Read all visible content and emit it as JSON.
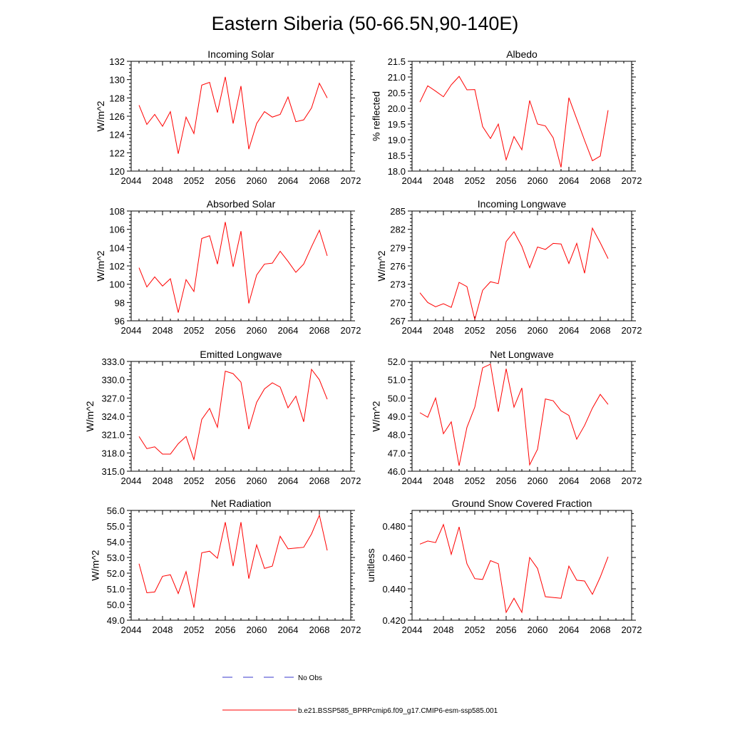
{
  "title": "Eastern Siberia (50-66.5N,90-140E)",
  "legend": {
    "no_obs_label": "No Obs",
    "model_label": "b.e21.BSSP585_BPRPcmip6.f09_g17.CMIP6-esm-ssp585.001",
    "no_obs_color": "#3a3acc",
    "model_color": "#ff0000"
  },
  "chart_data": [
    {
      "type": "line",
      "title": "Incoming Solar",
      "ylabel": "W/m^2",
      "xlim": [
        2044,
        2072
      ],
      "ylim": [
        120,
        132
      ],
      "xticks": [
        "2044",
        "2048",
        "2052",
        "2056",
        "2060",
        "2064",
        "2068",
        "2072"
      ],
      "yticks": [
        "120",
        "122",
        "124",
        "126",
        "128",
        "130",
        "132"
      ],
      "x": [
        2045,
        2046,
        2047,
        2048,
        2049,
        2050,
        2051,
        2052,
        2053,
        2054,
        2055,
        2056,
        2057,
        2058,
        2059,
        2060,
        2061,
        2062,
        2063,
        2064,
        2065,
        2066,
        2067,
        2068,
        2069
      ],
      "series": [
        {
          "values": [
            127.2,
            125.1,
            126.2,
            124.9,
            126.5,
            121.9,
            125.9,
            124.1,
            129.4,
            129.7,
            126.4,
            130.3,
            125.2,
            129.3,
            122.4,
            125.2,
            126.5,
            125.9,
            126.2,
            128.1,
            125.4,
            125.6,
            126.9,
            129.6,
            128.0
          ]
        }
      ]
    },
    {
      "type": "line",
      "title": "Albedo",
      "ylabel": "% reflected",
      "xlim": [
        2044,
        2072
      ],
      "ylim": [
        18.0,
        21.5
      ],
      "xticks": [
        "2044",
        "2048",
        "2052",
        "2056",
        "2060",
        "2064",
        "2068",
        "2072"
      ],
      "yticks": [
        "18.0",
        "18.5",
        "19.0",
        "19.5",
        "20.0",
        "20.5",
        "21.0",
        "21.5"
      ],
      "x": [
        2045,
        2046,
        2047,
        2048,
        2049,
        2050,
        2051,
        2052,
        2053,
        2054,
        2055,
        2056,
        2057,
        2058,
        2059,
        2060,
        2061,
        2062,
        2063,
        2064,
        2065,
        2066,
        2067,
        2068,
        2069
      ],
      "series": [
        {
          "values": [
            20.2,
            20.72,
            20.55,
            20.37,
            20.75,
            21.02,
            20.59,
            20.6,
            19.42,
            19.04,
            19.5,
            18.36,
            19.1,
            18.68,
            20.25,
            19.5,
            19.44,
            19.06,
            18.12,
            20.34,
            19.66,
            18.98,
            18.33,
            18.48,
            19.94
          ]
        }
      ]
    },
    {
      "type": "line",
      "title": "Absorbed Solar",
      "ylabel": "W/m^2",
      "xlim": [
        2044,
        2072
      ],
      "ylim": [
        96,
        108
      ],
      "xticks": [
        "2044",
        "2048",
        "2052",
        "2056",
        "2060",
        "2064",
        "2068",
        "2072"
      ],
      "yticks": [
        "96",
        "98",
        "100",
        "102",
        "104",
        "106",
        "108"
      ],
      "x": [
        2045,
        2046,
        2047,
        2048,
        2049,
        2050,
        2051,
        2052,
        2053,
        2054,
        2055,
        2056,
        2057,
        2058,
        2059,
        2060,
        2061,
        2062,
        2063,
        2064,
        2065,
        2066,
        2067,
        2068,
        2069
      ],
      "series": [
        {
          "values": [
            101.8,
            99.7,
            100.8,
            99.8,
            100.6,
            96.9,
            100.5,
            99.2,
            105.0,
            105.3,
            102.2,
            106.8,
            101.9,
            105.8,
            97.9,
            101.0,
            102.2,
            102.3,
            103.6,
            102.5,
            101.3,
            102.2,
            104.1,
            105.9,
            103.1
          ]
        }
      ]
    },
    {
      "type": "line",
      "title": "Incoming Longwave",
      "ylabel": "W/m^2",
      "xlim": [
        2044,
        2072
      ],
      "ylim": [
        267,
        285
      ],
      "xticks": [
        "2044",
        "2048",
        "2052",
        "2056",
        "2060",
        "2064",
        "2068",
        "2072"
      ],
      "yticks": [
        "267",
        "270",
        "273",
        "276",
        "279",
        "282",
        "285"
      ],
      "x": [
        2045,
        2046,
        2047,
        2048,
        2049,
        2050,
        2051,
        2052,
        2053,
        2054,
        2055,
        2056,
        2057,
        2058,
        2059,
        2060,
        2061,
        2062,
        2063,
        2064,
        2065,
        2066,
        2067,
        2068,
        2069
      ],
      "series": [
        {
          "values": [
            271.6,
            270.0,
            269.3,
            269.8,
            269.2,
            273.3,
            272.6,
            267.2,
            272.0,
            273.4,
            273.1,
            280.0,
            281.6,
            279.2,
            275.7,
            279.1,
            278.7,
            279.7,
            279.6,
            276.4,
            279.7,
            274.8,
            282.2,
            279.8,
            277.2
          ]
        }
      ]
    },
    {
      "type": "line",
      "title": "Emitted Longwave",
      "ylabel": "W/m^2",
      "xlim": [
        2044,
        2072
      ],
      "ylim": [
        315,
        333
      ],
      "xticks": [
        "2044",
        "2048",
        "2052",
        "2056",
        "2060",
        "2064",
        "2068",
        "2072"
      ],
      "yticks": [
        "315.0",
        "318.0",
        "321.0",
        "324.0",
        "327.0",
        "330.0",
        "333.0"
      ],
      "x": [
        2045,
        2046,
        2047,
        2048,
        2049,
        2050,
        2051,
        2052,
        2053,
        2054,
        2055,
        2056,
        2057,
        2058,
        2059,
        2060,
        2061,
        2062,
        2063,
        2064,
        2065,
        2066,
        2067,
        2068,
        2069
      ],
      "series": [
        {
          "values": [
            320.7,
            318.7,
            319.0,
            317.8,
            317.8,
            319.5,
            320.7,
            316.9,
            323.5,
            325.3,
            322.2,
            331.4,
            331.0,
            329.6,
            321.9,
            326.3,
            328.5,
            329.5,
            328.8,
            325.4,
            327.3,
            323.1,
            331.7,
            330.0,
            326.8
          ]
        }
      ]
    },
    {
      "type": "line",
      "title": "Net Longwave",
      "ylabel": "W/m^2",
      "xlim": [
        2044,
        2072
      ],
      "ylim": [
        46,
        52
      ],
      "xticks": [
        "2044",
        "2048",
        "2052",
        "2056",
        "2060",
        "2064",
        "2068",
        "2072"
      ],
      "yticks": [
        "46.0",
        "47.0",
        "48.0",
        "49.0",
        "50.0",
        "51.0",
        "52.0"
      ],
      "x": [
        2045,
        2046,
        2047,
        2048,
        2049,
        2050,
        2051,
        2052,
        2053,
        2054,
        2055,
        2056,
        2057,
        2058,
        2059,
        2060,
        2061,
        2062,
        2063,
        2064,
        2065,
        2066,
        2067,
        2068,
        2069
      ],
      "series": [
        {
          "values": [
            49.2,
            48.95,
            50.0,
            48.05,
            48.7,
            46.3,
            48.4,
            49.5,
            51.65,
            51.85,
            49.25,
            51.6,
            49.5,
            50.55,
            46.35,
            47.2,
            49.95,
            49.85,
            49.3,
            49.05,
            47.75,
            48.5,
            49.45,
            50.2,
            49.65
          ]
        }
      ]
    },
    {
      "type": "line",
      "title": "Net Radiation",
      "ylabel": "W/m^2",
      "xlim": [
        2044,
        2072
      ],
      "ylim": [
        49,
        56
      ],
      "xticks": [
        "2044",
        "2048",
        "2052",
        "2056",
        "2060",
        "2064",
        "2068",
        "2072"
      ],
      "yticks": [
        "49.0",
        "50.0",
        "51.0",
        "52.0",
        "53.0",
        "54.0",
        "55.0",
        "56.0"
      ],
      "x": [
        2045,
        2046,
        2047,
        2048,
        2049,
        2050,
        2051,
        2052,
        2053,
        2054,
        2055,
        2056,
        2057,
        2058,
        2059,
        2060,
        2061,
        2062,
        2063,
        2064,
        2065,
        2066,
        2067,
        2068,
        2069
      ],
      "series": [
        {
          "values": [
            52.6,
            50.75,
            50.8,
            51.8,
            51.9,
            50.7,
            52.1,
            49.8,
            53.3,
            53.4,
            52.95,
            55.25,
            52.45,
            55.25,
            51.65,
            53.8,
            52.3,
            52.45,
            54.35,
            53.55,
            53.6,
            53.65,
            54.5,
            55.7,
            53.45
          ]
        }
      ]
    },
    {
      "type": "line",
      "title": "Ground Snow Covered Fraction",
      "ylabel": "unitless",
      "xlim": [
        2044,
        2072
      ],
      "ylim": [
        0.42,
        0.49
      ],
      "xticks": [
        "2044",
        "2048",
        "2052",
        "2056",
        "2060",
        "2064",
        "2068",
        "2072"
      ],
      "yticks": [
        "0.420",
        "0.440",
        "0.460",
        "0.480"
      ],
      "x": [
        2045,
        2046,
        2047,
        2048,
        2049,
        2050,
        2051,
        2052,
        2053,
        2054,
        2055,
        2056,
        2057,
        2058,
        2059,
        2060,
        2061,
        2062,
        2063,
        2064,
        2065,
        2066,
        2067,
        2068,
        2069
      ],
      "series": [
        {
          "values": [
            0.4685,
            0.4705,
            0.4695,
            0.481,
            0.462,
            0.4795,
            0.456,
            0.4465,
            0.446,
            0.458,
            0.456,
            0.425,
            0.434,
            0.425,
            0.46,
            0.453,
            0.435,
            0.4345,
            0.434,
            0.4545,
            0.4455,
            0.445,
            0.4365,
            0.4475,
            0.4605
          ]
        }
      ]
    }
  ]
}
